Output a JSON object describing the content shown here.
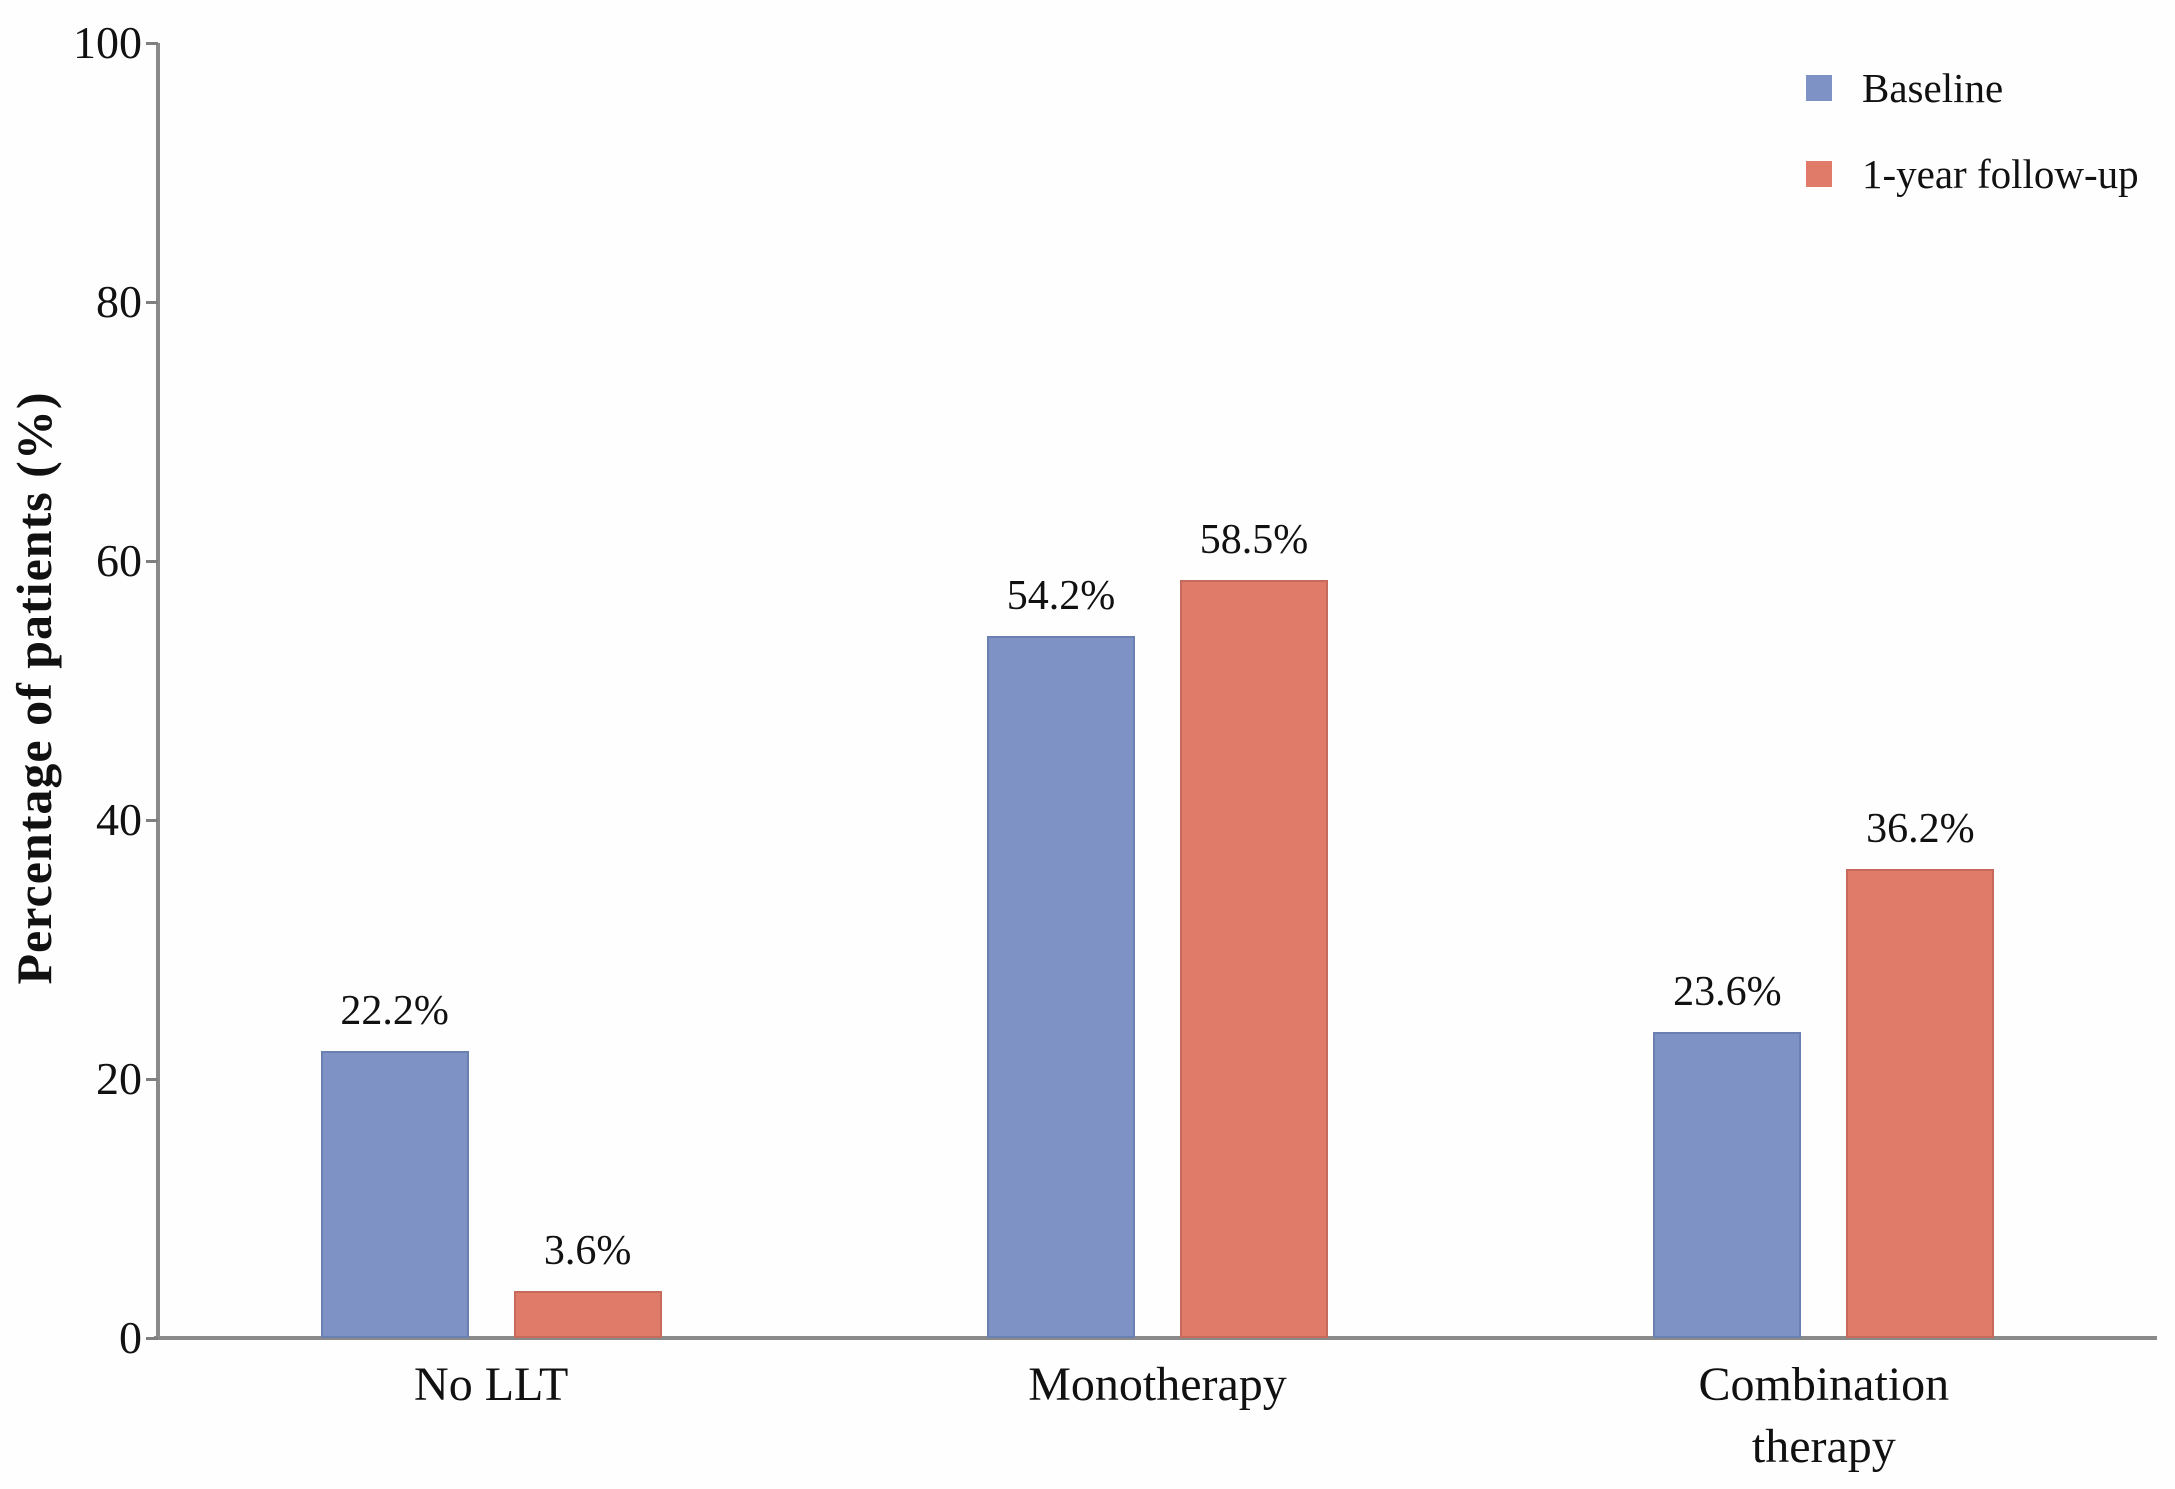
{
  "chart_data": {
    "type": "bar",
    "ylabel": "Percentage of patients (%)",
    "ylim": [
      0,
      100
    ],
    "yticks": [
      0,
      20,
      40,
      60,
      80,
      100
    ],
    "categories": [
      "No LLT",
      "Monotherapy",
      "Combination therapy"
    ],
    "series": [
      {
        "name": "Baseline",
        "color": "#7e92c6",
        "border_color": "#6a80b0",
        "values": [
          22.2,
          54.2,
          23.6
        ],
        "labels": [
          "22.2%",
          "54.2%",
          "23.6%"
        ]
      },
      {
        "name": "1-year follow-up",
        "color": "#e17b69",
        "border_color": "#c66b5b",
        "values": [
          3.6,
          58.5,
          36.2
        ],
        "labels": [
          "3.6%",
          "58.5%",
          "36.2%"
        ]
      }
    ],
    "legend_position": "top-right",
    "grid": false,
    "axis_color": "#8a8a8a",
    "text_color": "#111111"
  }
}
